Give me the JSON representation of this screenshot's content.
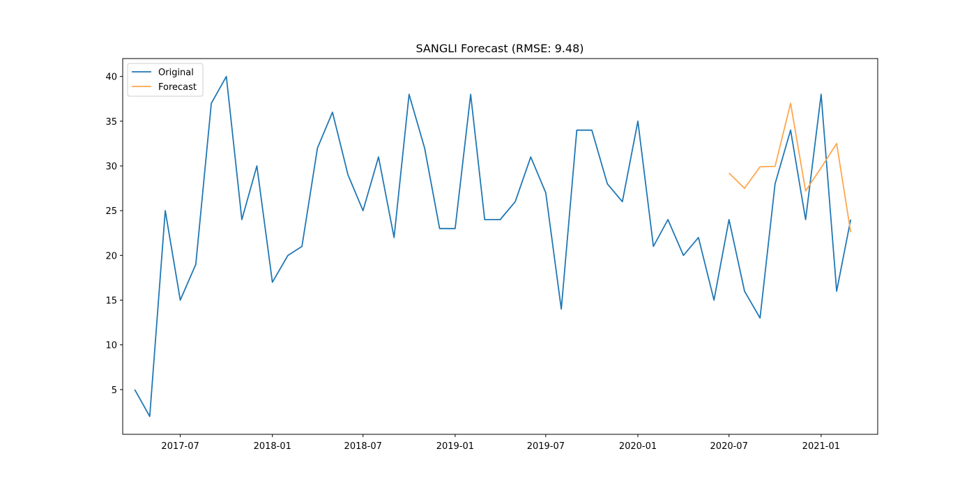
{
  "chart_data": {
    "type": "line",
    "title": "SANGLI Forecast (RMSE: 9.48)",
    "xlabel": "",
    "ylabel": "",
    "xlim": [
      "2017-03-08",
      "2021-04-24"
    ],
    "ylim": [
      0,
      42
    ],
    "x_ticks": [
      "2017-07",
      "2018-01",
      "2018-07",
      "2019-01",
      "2019-07",
      "2020-01",
      "2020-07",
      "2021-01"
    ],
    "y_ticks": [
      5,
      10,
      15,
      20,
      25,
      30,
      35,
      40
    ],
    "grid": false,
    "legend_position": "top-left",
    "series": [
      {
        "name": "Original",
        "color": "#1f77b4",
        "x": [
          "2017-04",
          "2017-05",
          "2017-06",
          "2017-07",
          "2017-08",
          "2017-09",
          "2017-10",
          "2017-11",
          "2017-12",
          "2018-01",
          "2018-02",
          "2018-03",
          "2018-04",
          "2018-05",
          "2018-06",
          "2018-07",
          "2018-08",
          "2018-09",
          "2018-10",
          "2018-11",
          "2018-12",
          "2019-01",
          "2019-02",
          "2019-03",
          "2019-04",
          "2019-05",
          "2019-06",
          "2019-07",
          "2019-08",
          "2019-09",
          "2019-10",
          "2019-11",
          "2019-12",
          "2020-01",
          "2020-02",
          "2020-03",
          "2020-04",
          "2020-05",
          "2020-06",
          "2020-07",
          "2020-08",
          "2020-09",
          "2020-10",
          "2020-11",
          "2020-12",
          "2021-01",
          "2021-02",
          "2021-03"
        ],
        "values": [
          5,
          2,
          25,
          15,
          19,
          37,
          40,
          24,
          30,
          17,
          20,
          21,
          32,
          36,
          29,
          25,
          31,
          22,
          38,
          32,
          23,
          23,
          38,
          24,
          24,
          26,
          31,
          27,
          14,
          34,
          34,
          28,
          26,
          35,
          21,
          24,
          20,
          22,
          15,
          24,
          16,
          13,
          28,
          34,
          24,
          38,
          16,
          24
        ]
      },
      {
        "name": "Forecast",
        "color": "#ffa64d",
        "x": [
          "2020-07",
          "2020-08",
          "2020-09",
          "2020-10",
          "2020-11",
          "2020-12",
          "2021-01",
          "2021-02",
          "2021-03"
        ],
        "values": [
          29.2,
          27.5,
          29.9,
          29.95,
          37,
          27.2,
          29.8,
          32.5,
          22.6
        ]
      }
    ]
  }
}
